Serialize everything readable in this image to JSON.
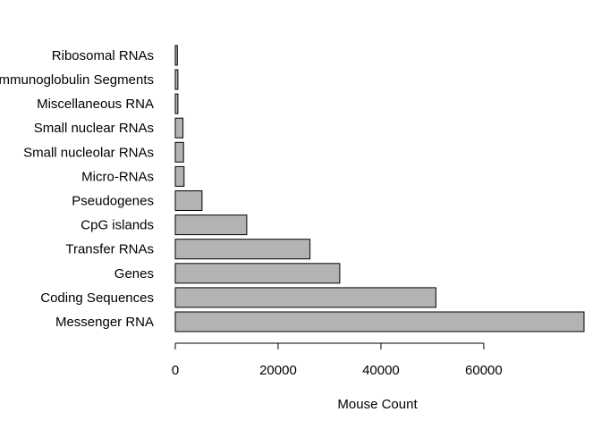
{
  "chart_data": {
    "type": "bar",
    "orientation": "horizontal",
    "categories": [
      "Messenger RNA",
      "Coding Sequences",
      "Genes",
      "Transfer RNAs",
      "CpG islands",
      "Pseudogenes",
      "Micro-RNAs",
      "Small nucleolar RNAs",
      "Small nuclear RNAs",
      "Miscellaneous RNA",
      "Immunoglobulin Segments",
      "Ribosomal RNAs"
    ],
    "values": [
      79500,
      50700,
      32000,
      26200,
      13900,
      5200,
      1700,
      1600,
      1500,
      500,
      500,
      400
    ],
    "xlabel": "Mouse Count",
    "ylabel": "",
    "title": "",
    "xticks": [
      0,
      20000,
      40000,
      60000
    ],
    "xlim": [
      0,
      79500
    ],
    "bar_color": "#b3b3b3",
    "grid": false
  }
}
